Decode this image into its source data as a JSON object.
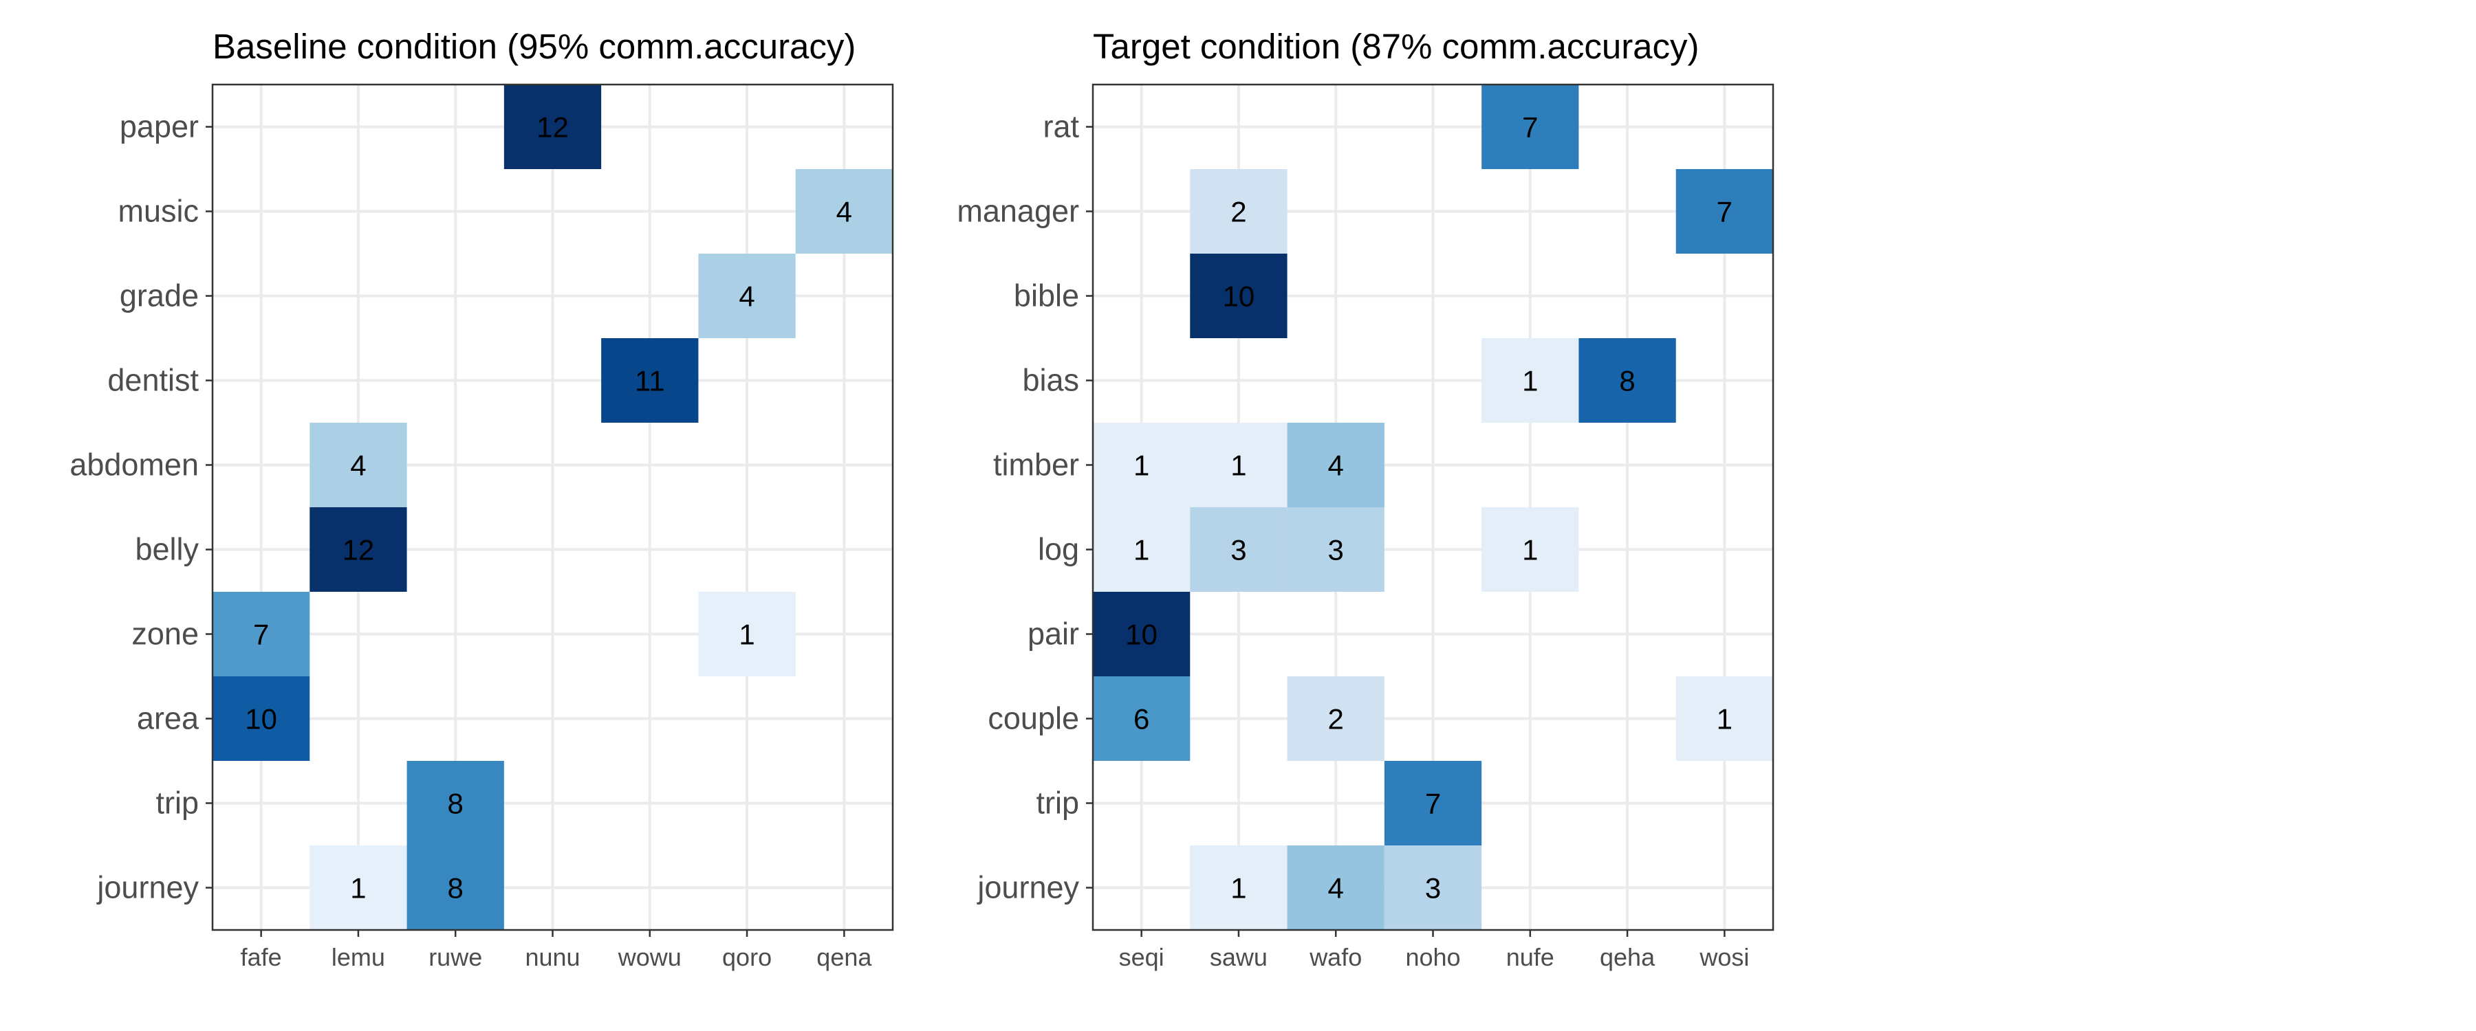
{
  "chart_data": [
    {
      "type": "heatmap",
      "title": "Baseline condition (95% comm.accuracy)",
      "x_categories": [
        "fafe",
        "lemu",
        "ruwe",
        "nunu",
        "wowu",
        "qoro",
        "qena"
      ],
      "y_categories": [
        "paper",
        "music",
        "grade",
        "dentist",
        "abdomen",
        "belly",
        "zone",
        "area",
        "trip",
        "journey"
      ],
      "cells": [
        {
          "y": "paper",
          "x": "nunu",
          "value": 12
        },
        {
          "y": "music",
          "x": "qena",
          "value": 4
        },
        {
          "y": "grade",
          "x": "qoro",
          "value": 4
        },
        {
          "y": "dentist",
          "x": "wowu",
          "value": 11
        },
        {
          "y": "abdomen",
          "x": "lemu",
          "value": 4
        },
        {
          "y": "belly",
          "x": "lemu",
          "value": 12
        },
        {
          "y": "zone",
          "x": "fafe",
          "value": 7
        },
        {
          "y": "zone",
          "x": "qoro",
          "value": 1
        },
        {
          "y": "area",
          "x": "fafe",
          "value": 10
        },
        {
          "y": "trip",
          "x": "ruwe",
          "value": 8
        },
        {
          "y": "journey",
          "x": "lemu",
          "value": 1
        },
        {
          "y": "journey",
          "x": "ruwe",
          "value": 8
        }
      ],
      "value_range": [
        0,
        12
      ],
      "color_scale": [
        "#f7fbff",
        "#deebf7",
        "#c6dbef",
        "#9ecae1",
        "#6baed6",
        "#4292c6",
        "#2171b5",
        "#08519c",
        "#08306b"
      ],
      "legend": false,
      "grid": true
    },
    {
      "type": "heatmap",
      "title": "Target condition (87% comm.accuracy)",
      "x_categories": [
        "seqi",
        "sawu",
        "wafo",
        "noho",
        "nufe",
        "qeha",
        "wosi"
      ],
      "y_categories": [
        "rat",
        "manager",
        "bible",
        "bias",
        "timber",
        "log",
        "pair",
        "couple",
        "trip",
        "journey"
      ],
      "cells": [
        {
          "y": "rat",
          "x": "nufe",
          "value": 7
        },
        {
          "y": "manager",
          "x": "sawu",
          "value": 2
        },
        {
          "y": "manager",
          "x": "wosi",
          "value": 7
        },
        {
          "y": "bible",
          "x": "sawu",
          "value": 10
        },
        {
          "y": "bias",
          "x": "nufe",
          "value": 1
        },
        {
          "y": "bias",
          "x": "qeha",
          "value": 8
        },
        {
          "y": "timber",
          "x": "seqi",
          "value": 1
        },
        {
          "y": "timber",
          "x": "sawu",
          "value": 1
        },
        {
          "y": "timber",
          "x": "wafo",
          "value": 4
        },
        {
          "y": "log",
          "x": "seqi",
          "value": 1
        },
        {
          "y": "log",
          "x": "sawu",
          "value": 3
        },
        {
          "y": "log",
          "x": "wafo",
          "value": 3
        },
        {
          "y": "log",
          "x": "nufe",
          "value": 1
        },
        {
          "y": "pair",
          "x": "seqi",
          "value": 10
        },
        {
          "y": "couple",
          "x": "seqi",
          "value": 6
        },
        {
          "y": "couple",
          "x": "wafo",
          "value": 2
        },
        {
          "y": "couple",
          "x": "wosi",
          "value": 1
        },
        {
          "y": "trip",
          "x": "noho",
          "value": 7
        },
        {
          "y": "journey",
          "x": "sawu",
          "value": 1
        },
        {
          "y": "journey",
          "x": "wafo",
          "value": 4
        },
        {
          "y": "journey",
          "x": "noho",
          "value": 3
        }
      ],
      "value_range": [
        0,
        10
      ],
      "color_scale": [
        "#f7fbff",
        "#deebf7",
        "#c6dbef",
        "#9ecae1",
        "#6baed6",
        "#4292c6",
        "#2171b5",
        "#08519c",
        "#08306b"
      ],
      "legend": false,
      "grid": true
    }
  ]
}
